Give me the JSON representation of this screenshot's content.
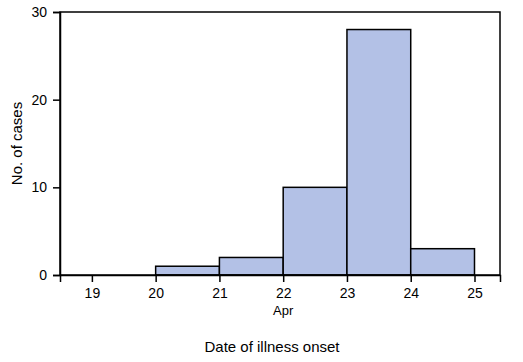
{
  "chart_data": {
    "type": "histogram",
    "bins": [
      20,
      21,
      22,
      23,
      24,
      25
    ],
    "values": [
      1,
      2,
      10,
      28,
      3
    ],
    "color": "#b3c1e6",
    "x_label": "Date of illness onset",
    "y_label": "No. of cases",
    "annotations": [
      {
        "text": "Apr",
        "x": 22
      }
    ],
    "xlim": [
      18.5,
      25.4
    ],
    "xticks": [
      19,
      20,
      21,
      22,
      23,
      24,
      25
    ],
    "ylim": [
      0,
      30
    ],
    "yticks": [
      0,
      10,
      20,
      30
    ],
    "grid": false
  }
}
